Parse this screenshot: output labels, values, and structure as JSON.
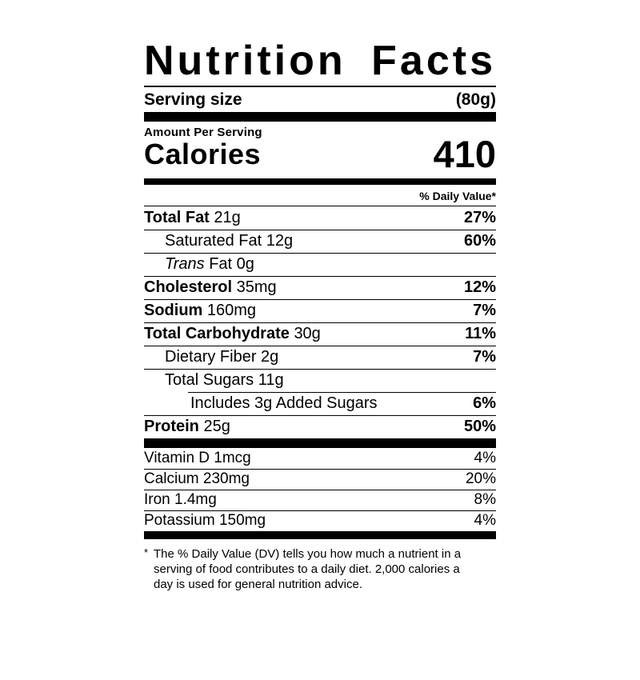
{
  "colors": {
    "ink": "#000000",
    "paper": "#ffffff"
  },
  "title_words": {
    "first": "Nutrition",
    "second": "Facts"
  },
  "serving": {
    "label": "Serving size",
    "value": "(80g)"
  },
  "calories": {
    "amount_label": "Amount Per Serving",
    "label": "Calories",
    "value": "410"
  },
  "daily_value_header": "% Daily Value*",
  "nutrients": [
    {
      "bold": "Total Fat",
      "rest": "21g",
      "dv": "27%",
      "indent": 0,
      "dv_bold": true
    },
    {
      "rest": "Saturated Fat 12g",
      "dv": "60%",
      "indent": 1,
      "dv_bold": true
    },
    {
      "italic": "Trans",
      "rest": "Fat 0g",
      "dv": "",
      "indent": 1
    },
    {
      "bold": "Cholesterol",
      "rest": "35mg",
      "dv": "12%",
      "indent": 0,
      "dv_bold": true
    },
    {
      "bold": "Sodium",
      "rest": "160mg",
      "dv": "7%",
      "indent": 0,
      "dv_bold": true
    },
    {
      "bold": "Total Carbohydrate",
      "rest": "30g",
      "dv": "11%",
      "indent": 0,
      "dv_bold": true
    },
    {
      "rest": "Dietary Fiber 2g",
      "dv": "7%",
      "indent": 1,
      "dv_bold": true
    },
    {
      "rest": "Total Sugars 11g",
      "dv": "",
      "indent": 1
    },
    {
      "rest": "Includes 3g Added Sugars",
      "dv": "6%",
      "indent": 2,
      "dv_bold": true,
      "inset_rule": true
    },
    {
      "bold": "Protein",
      "rest": "25g",
      "dv": "50%",
      "indent": 0,
      "dv_bold": true
    }
  ],
  "micronutrients": [
    {
      "rest": "Vitamin D 1mcg",
      "dv": "4%"
    },
    {
      "rest": "Calcium 230mg",
      "dv": "20%"
    },
    {
      "rest": "Iron 1.4mg",
      "dv": "8%"
    },
    {
      "rest": "Potassium 150mg",
      "dv": "4%"
    }
  ],
  "footnote": {
    "asterisk": "*",
    "lines": [
      "The % Daily Value (DV) tells you how much a nutrient in a",
      "serving of food contributes to a daily diet. 2,000 calories a",
      "day is used for general nutrition advice."
    ]
  }
}
